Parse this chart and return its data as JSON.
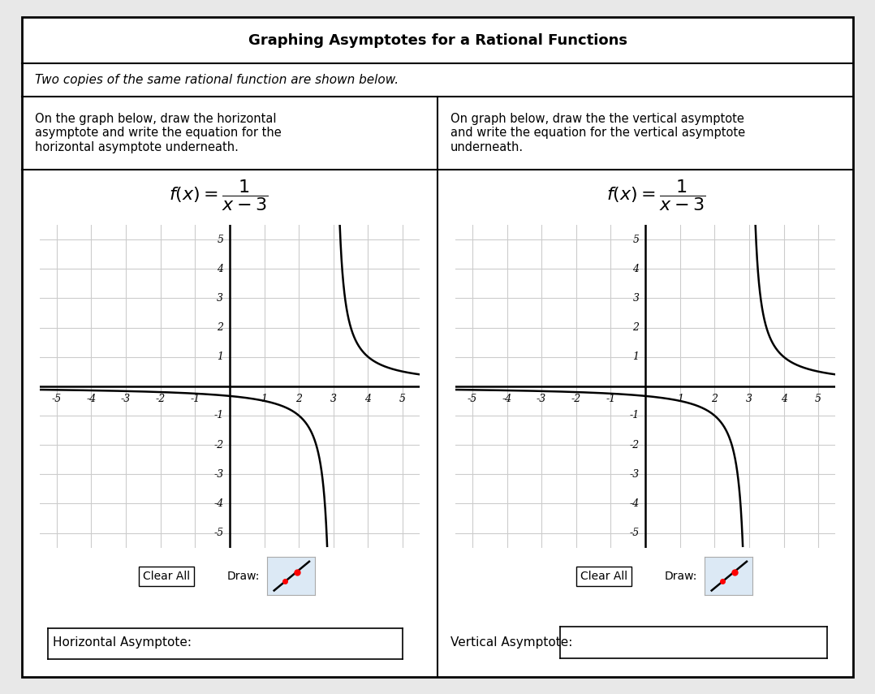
{
  "title": "Graphing Asymptotes for a Rational Functions",
  "subtitle": "Two copies of the same rational function are shown below.",
  "left_instruction": "On the graph below, draw the horizontal\nasymptote and write the equation for the\nhorizontal asymptote underneath.",
  "right_instruction": "On graph below, draw the the vertical asymptote\nand write the equation for the vertical asymptote\nunderneath.",
  "bg_color": "#ffffff",
  "grid_color": "#cccccc",
  "curve_color": "#000000",
  "left_label": "Horizontal Asymptote:",
  "right_label": "Vertical Asymptote:",
  "draw_button_color": "#dce9f5",
  "title_fontsize": 13,
  "subtitle_fontsize": 11,
  "instr_fontsize": 10.5,
  "formula_fontsize": 16,
  "label_fontsize": 11,
  "tick_fontsize": 9
}
